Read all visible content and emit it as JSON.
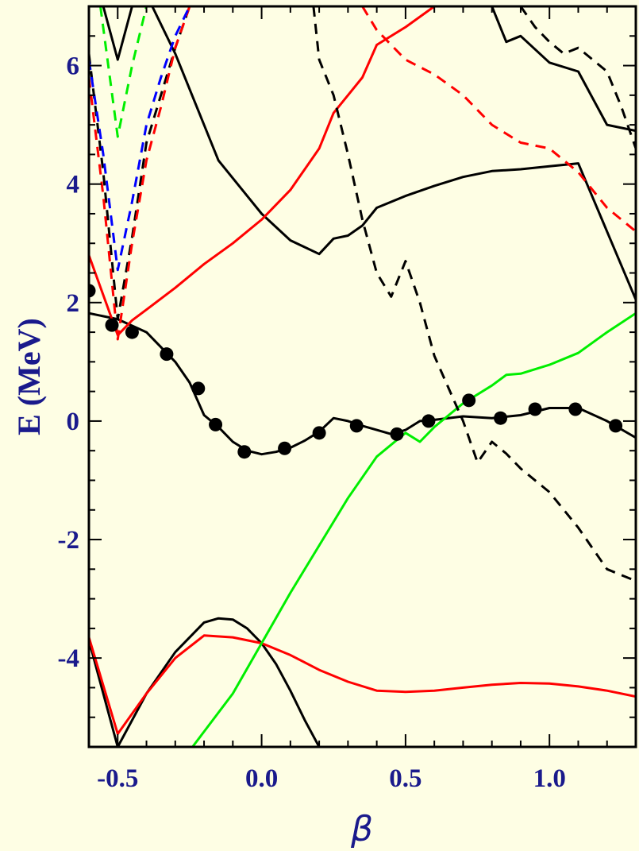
{
  "chart_data": {
    "type": "line",
    "xlabel": "β",
    "ylabel": "E (MeV)",
    "xlim": [
      -0.6,
      1.3
    ],
    "ylim": [
      -5.5,
      7.0
    ],
    "x_ticks": [
      -0.5,
      0.0,
      0.5,
      1.0
    ],
    "x_tick_labels": [
      "-0.5",
      "0.0",
      "0.5",
      "1.0"
    ],
    "y_ticks": [
      -4,
      -2,
      0,
      2,
      4,
      6
    ],
    "y_tick_labels": [
      "-4",
      "-2",
      "0",
      "2",
      "4",
      "6"
    ],
    "grid": false,
    "background": "#fefee4",
    "series": [
      {
        "color": "#000000",
        "dash": false,
        "points": [
          [
            -0.6,
            1.82
          ],
          [
            -0.5,
            1.72
          ],
          [
            -0.4,
            1.5
          ],
          [
            -0.3,
            1.0
          ],
          [
            -0.25,
            0.65
          ],
          [
            -0.2,
            0.1
          ],
          [
            -0.15,
            -0.1
          ],
          [
            -0.1,
            -0.35
          ],
          [
            -0.05,
            -0.5
          ],
          [
            0.0,
            -0.56
          ],
          [
            0.05,
            -0.52
          ],
          [
            0.1,
            -0.45
          ],
          [
            0.15,
            -0.33
          ],
          [
            0.2,
            -0.18
          ],
          [
            0.25,
            0.05
          ],
          [
            0.3,
            0.0
          ],
          [
            0.35,
            -0.08
          ],
          [
            0.4,
            -0.15
          ],
          [
            0.45,
            -0.22
          ],
          [
            0.5,
            -0.15
          ],
          [
            0.55,
            0.0
          ],
          [
            0.6,
            0.02
          ],
          [
            0.7,
            0.08
          ],
          [
            0.8,
            0.05
          ],
          [
            0.9,
            0.1
          ],
          [
            1.0,
            0.22
          ],
          [
            1.1,
            0.22
          ],
          [
            1.2,
            0.0
          ],
          [
            1.3,
            -0.28
          ]
        ]
      },
      {
        "color": "#000000",
        "dash": false,
        "points": [
          [
            -0.55,
            7.0
          ],
          [
            -0.5,
            6.1
          ],
          [
            -0.45,
            7.0
          ]
        ]
      },
      {
        "color": "#000000",
        "dash": false,
        "points": [
          [
            -0.38,
            7.0
          ],
          [
            -0.3,
            6.2
          ],
          [
            -0.15,
            4.4
          ],
          [
            0.0,
            3.5
          ],
          [
            0.1,
            3.05
          ],
          [
            0.2,
            2.82
          ],
          [
            0.25,
            3.08
          ],
          [
            0.3,
            3.13
          ],
          [
            0.35,
            3.3
          ],
          [
            0.4,
            3.6
          ],
          [
            0.5,
            3.8
          ],
          [
            0.6,
            3.97
          ],
          [
            0.7,
            4.12
          ],
          [
            0.8,
            4.22
          ],
          [
            0.9,
            4.25
          ],
          [
            1.0,
            4.3
          ],
          [
            1.1,
            4.35
          ],
          [
            1.2,
            3.2
          ],
          [
            1.3,
            2.05
          ]
        ]
      },
      {
        "color": "#000000",
        "dash": false,
        "points": [
          [
            0.8,
            7.0
          ],
          [
            0.85,
            6.4
          ],
          [
            0.9,
            6.5
          ],
          [
            1.0,
            6.05
          ],
          [
            1.1,
            5.9
          ],
          [
            1.2,
            5.0
          ],
          [
            1.3,
            4.9
          ]
        ]
      },
      {
        "color": "#000000",
        "dash": false,
        "points": [
          [
            -0.6,
            -3.7
          ],
          [
            -0.55,
            -4.6
          ],
          [
            -0.5,
            -5.5
          ]
        ]
      },
      {
        "color": "#000000",
        "dash": false,
        "points": [
          [
            -0.5,
            -5.5
          ],
          [
            -0.4,
            -4.6
          ],
          [
            -0.3,
            -3.9
          ],
          [
            -0.2,
            -3.4
          ],
          [
            -0.15,
            -3.33
          ],
          [
            -0.1,
            -3.35
          ],
          [
            -0.05,
            -3.5
          ],
          [
            0.0,
            -3.75
          ],
          [
            0.05,
            -4.1
          ],
          [
            0.1,
            -4.55
          ],
          [
            0.15,
            -5.05
          ],
          [
            0.2,
            -5.5
          ]
        ]
      },
      {
        "color": "#ff0000",
        "dash": false,
        "points": [
          [
            -0.6,
            2.8
          ],
          [
            -0.5,
            1.45
          ],
          [
            -0.45,
            1.7
          ],
          [
            -0.4,
            1.88
          ],
          [
            -0.3,
            2.25
          ],
          [
            -0.2,
            2.65
          ],
          [
            -0.1,
            3.0
          ],
          [
            0.0,
            3.4
          ],
          [
            0.1,
            3.9
          ],
          [
            0.2,
            4.6
          ],
          [
            0.25,
            5.2
          ],
          [
            0.3,
            5.5
          ],
          [
            0.35,
            5.8
          ],
          [
            0.4,
            6.35
          ],
          [
            0.5,
            6.65
          ],
          [
            0.6,
            7.0
          ]
        ]
      },
      {
        "color": "#ff0000",
        "dash": false,
        "points": [
          [
            -0.6,
            -3.65
          ],
          [
            -0.5,
            -5.28
          ],
          [
            -0.4,
            -4.6
          ],
          [
            -0.3,
            -4.0
          ],
          [
            -0.2,
            -3.62
          ],
          [
            -0.1,
            -3.65
          ],
          [
            0.0,
            -3.75
          ],
          [
            0.1,
            -3.95
          ],
          [
            0.2,
            -4.2
          ],
          [
            0.3,
            -4.4
          ],
          [
            0.4,
            -4.55
          ],
          [
            0.5,
            -4.57
          ],
          [
            0.6,
            -4.55
          ],
          [
            0.7,
            -4.5
          ],
          [
            0.8,
            -4.45
          ],
          [
            0.9,
            -4.42
          ],
          [
            1.0,
            -4.43
          ],
          [
            1.1,
            -4.48
          ],
          [
            1.2,
            -4.55
          ],
          [
            1.3,
            -4.65
          ]
        ]
      },
      {
        "color": "#00ee00",
        "dash": false,
        "points": [
          [
            -0.24,
            -5.5
          ],
          [
            -0.1,
            -4.6
          ],
          [
            0.0,
            -3.75
          ],
          [
            0.1,
            -2.9
          ],
          [
            0.2,
            -2.1
          ],
          [
            0.3,
            -1.3
          ],
          [
            0.4,
            -0.6
          ],
          [
            0.5,
            -0.2
          ],
          [
            0.55,
            -0.35
          ],
          [
            0.6,
            -0.1
          ],
          [
            0.7,
            0.3
          ],
          [
            0.8,
            0.6
          ],
          [
            0.85,
            0.78
          ],
          [
            0.9,
            0.8
          ],
          [
            1.0,
            0.95
          ],
          [
            1.1,
            1.15
          ],
          [
            1.2,
            1.5
          ],
          [
            1.3,
            1.82
          ]
        ]
      },
      {
        "color": "#000000",
        "dash": true,
        "points": [
          [
            -0.6,
            6.2
          ],
          [
            -0.55,
            4.2
          ],
          [
            -0.5,
            1.72
          ],
          [
            -0.45,
            3.1
          ],
          [
            -0.4,
            4.7
          ],
          [
            -0.35,
            5.5
          ],
          [
            -0.3,
            6.3
          ],
          [
            -0.25,
            7.0
          ]
        ]
      },
      {
        "color": "#000000",
        "dash": true,
        "points": [
          [
            0.18,
            7.0
          ],
          [
            0.2,
            6.1
          ],
          [
            0.25,
            5.5
          ],
          [
            0.3,
            4.5
          ],
          [
            0.35,
            3.4
          ],
          [
            0.4,
            2.5
          ],
          [
            0.45,
            2.1
          ],
          [
            0.5,
            2.7
          ],
          [
            0.55,
            2.0
          ],
          [
            0.6,
            1.1
          ],
          [
            0.7,
            0.0
          ],
          [
            0.75,
            -0.7
          ],
          [
            0.8,
            -0.35
          ],
          [
            0.85,
            -0.55
          ],
          [
            0.9,
            -0.8
          ],
          [
            1.0,
            -1.2
          ],
          [
            1.1,
            -1.8
          ],
          [
            1.2,
            -2.5
          ],
          [
            1.3,
            -2.7
          ]
        ]
      },
      {
        "color": "#000000",
        "dash": true,
        "points": [
          [
            0.9,
            7.0
          ],
          [
            0.95,
            6.65
          ],
          [
            1.0,
            6.4
          ],
          [
            1.05,
            6.2
          ],
          [
            1.1,
            6.3
          ],
          [
            1.2,
            5.9
          ],
          [
            1.25,
            5.3
          ],
          [
            1.3,
            4.6
          ]
        ]
      },
      {
        "color": "#ff0000",
        "dash": true,
        "points": [
          [
            -0.6,
            5.8
          ],
          [
            -0.55,
            3.8
          ],
          [
            -0.5,
            1.38
          ],
          [
            -0.45,
            3.0
          ],
          [
            -0.4,
            4.4
          ],
          [
            -0.35,
            5.3
          ],
          [
            -0.3,
            6.3
          ],
          [
            -0.25,
            7.0
          ]
        ]
      },
      {
        "color": "#ff0000",
        "dash": true,
        "points": [
          [
            0.35,
            7.0
          ],
          [
            0.4,
            6.6
          ],
          [
            0.5,
            6.1
          ],
          [
            0.6,
            5.85
          ],
          [
            0.7,
            5.5
          ],
          [
            0.8,
            5.0
          ],
          [
            0.9,
            4.7
          ],
          [
            1.0,
            4.6
          ],
          [
            1.1,
            4.2
          ],
          [
            1.2,
            3.6
          ],
          [
            1.3,
            3.2
          ]
        ]
      },
      {
        "color": "#0000ff",
        "dash": true,
        "points": [
          [
            -0.6,
            6.1
          ],
          [
            -0.55,
            4.5
          ],
          [
            -0.5,
            2.55
          ],
          [
            -0.45,
            3.7
          ],
          [
            -0.4,
            5.0
          ],
          [
            -0.35,
            5.8
          ],
          [
            -0.3,
            6.5
          ],
          [
            -0.25,
            7.0
          ]
        ]
      },
      {
        "color": "#00ee00",
        "dash": true,
        "points": [
          [
            -0.56,
            7.0
          ],
          [
            -0.5,
            4.8
          ],
          [
            -0.45,
            6.0
          ],
          [
            -0.4,
            7.0
          ]
        ]
      }
    ],
    "markers": {
      "color": "#000000",
      "points": [
        [
          -0.6,
          2.2
        ],
        [
          -0.52,
          1.62
        ],
        [
          -0.45,
          1.5
        ],
        [
          -0.33,
          1.13
        ],
        [
          -0.22,
          0.55
        ],
        [
          -0.16,
          -0.06
        ],
        [
          -0.06,
          -0.52
        ],
        [
          0.08,
          -0.46
        ],
        [
          0.2,
          -0.2
        ],
        [
          0.33,
          -0.08
        ],
        [
          0.47,
          -0.22
        ],
        [
          0.58,
          0.0
        ],
        [
          0.72,
          0.35
        ],
        [
          0.83,
          0.05
        ],
        [
          0.95,
          0.2
        ],
        [
          1.09,
          0.2
        ],
        [
          1.23,
          -0.08
        ]
      ]
    }
  }
}
